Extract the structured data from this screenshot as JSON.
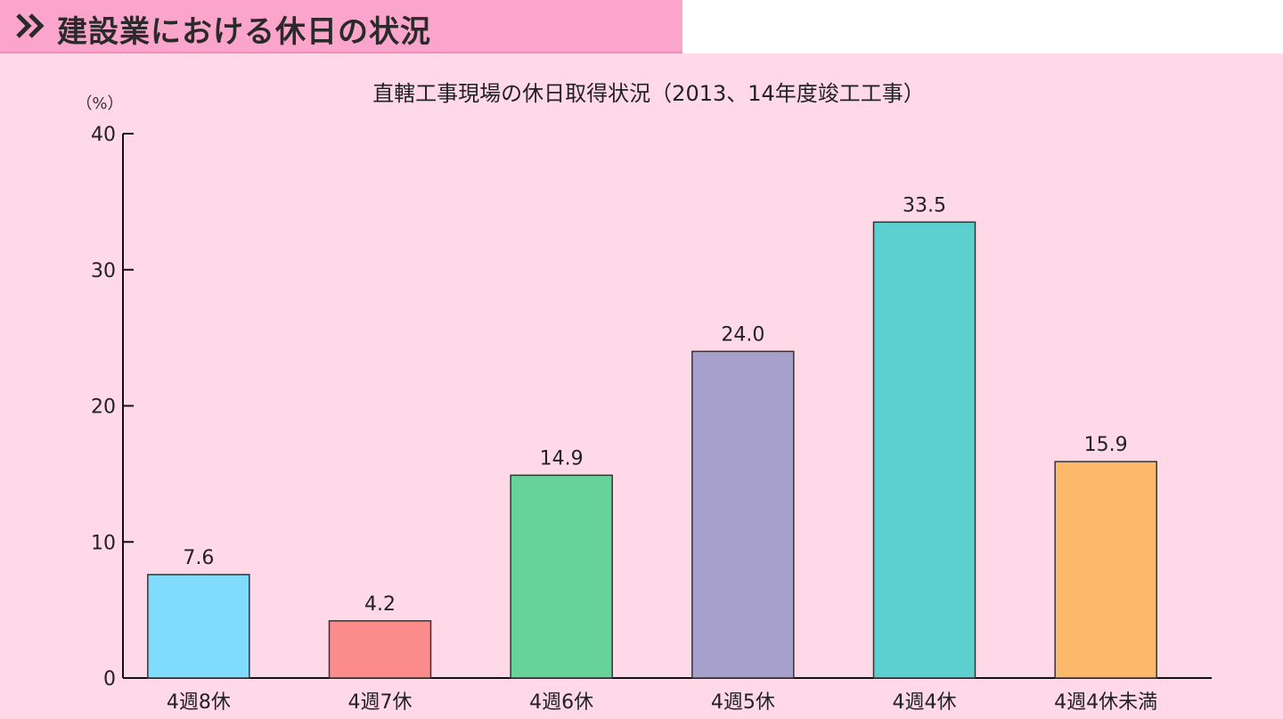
{
  "header": {
    "title": "建設業における休日の状況",
    "icon": "double-chevron-right-icon"
  },
  "chart_data": {
    "type": "bar",
    "title": "直轄工事現場の休日取得状況（2013、14年度竣工工事）",
    "ylabel": "（%）",
    "xlabel": "",
    "ylim": [
      0,
      40
    ],
    "yticks": [
      0,
      10,
      20,
      30,
      40
    ],
    "grid": false,
    "categories": [
      "4週8休",
      "4週7休",
      "4週6休",
      "4週5休",
      "4週4休",
      "4週4休未満"
    ],
    "values": [
      7.6,
      4.2,
      14.9,
      24.0,
      33.5,
      15.9
    ],
    "value_labels": [
      "7.6",
      "4.2",
      "14.9",
      "24.0",
      "33.5",
      "15.9"
    ],
    "colors": [
      "#80dcfc",
      "#fc8c8c",
      "#66d39b",
      "#a8a0cc",
      "#5ccfcf",
      "#fdb96b"
    ]
  }
}
